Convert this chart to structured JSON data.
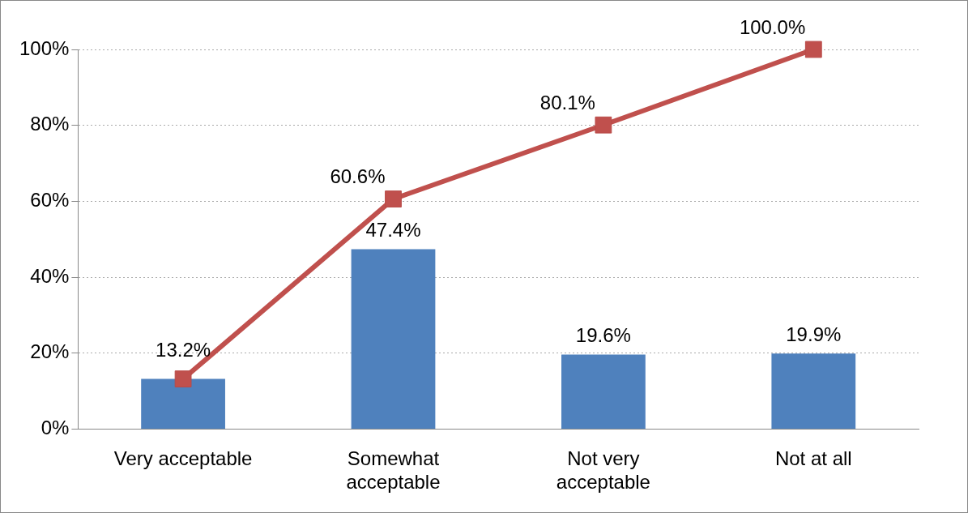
{
  "chart_data": {
    "type": "bar",
    "categories": [
      "Very acceptable",
      "Somewhat acceptable",
      "Not very acceptable",
      "Not at all"
    ],
    "series": [
      {
        "color": "#4f81bd",
        "values": [
          13.2,
          47.4,
          19.6,
          19.9
        ],
        "value_labels": [
          "13.2%",
          "47.4%",
          "19.6%",
          "19.9%"
        ]
      },
      {
        "type": "line",
        "color": "#c0504d",
        "values": [
          13.2,
          60.6,
          80.1,
          100.0
        ],
        "value_labels": [
          null,
          "60.6%",
          "80.1%",
          "100.0%"
        ],
        "marker": "square"
      }
    ],
    "ylim": [
      0,
      100
    ],
    "yticks": [
      {
        "value": 0,
        "label": "0%"
      },
      {
        "value": 20,
        "label": "20%"
      },
      {
        "value": 40,
        "label": "40%"
      },
      {
        "value": 60,
        "label": "60%"
      },
      {
        "value": 80,
        "label": "80%"
      },
      {
        "value": 100,
        "label": "100%"
      }
    ],
    "grid": "y",
    "legend": false
  }
}
